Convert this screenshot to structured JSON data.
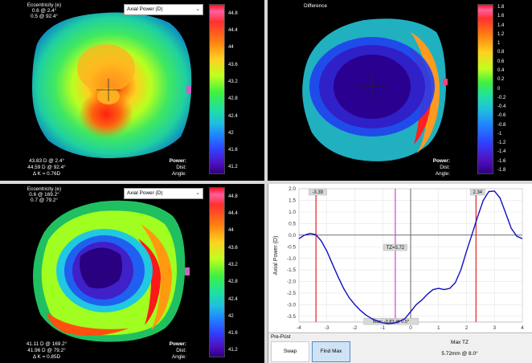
{
  "top_left": {
    "ecc_title": "Eccentricity (e)",
    "ecc_line1": "0.6 @ 2.4°",
    "ecc_line2": "0.5 @ 92.4°",
    "dropdown_value": "Axial Power (D)",
    "stats_line1": "43.83 D @ 2.4°",
    "stats_line2": "44.59 D @ 92.4°",
    "stats_line3": "Δ K = 0.76D",
    "power_label": "Power:",
    "dist_label": "Dist:",
    "angle_label": "Angle:",
    "scale_labels": [
      "44.8",
      "44.4",
      "44",
      "43.6",
      "43.2",
      "42.8",
      "42.4",
      "42",
      "41.6",
      "41.2"
    ]
  },
  "top_right": {
    "title": "Difference",
    "power_label": "Power:",
    "dist_label": "Dist:",
    "angle_label": "Angle:",
    "scale_labels": [
      "1.8",
      "1.6",
      "1.4",
      "1.2",
      "1",
      "0.8",
      "0.6",
      "0.4",
      "0.2",
      "0",
      "-0.2",
      "-0.4",
      "-0.6",
      "-0.8",
      "-1",
      "-1.2",
      "-1.4",
      "-1.6",
      "-1.8"
    ]
  },
  "bottom_left": {
    "ecc_title": "Eccentricity (e)",
    "ecc_line1": "0.6 @ 169.2°",
    "ecc_line2": "0.7 @ 79.2°",
    "dropdown_value": "Axial Power (D)",
    "stats_line1": "41.11 D @ 169.2°",
    "stats_line2": "41.96 D @ 79.2°",
    "stats_line3": "Δ K = 0.85D",
    "power_label": "Power:",
    "dist_label": "Dist:",
    "angle_label": "Angle:",
    "scale_labels": [
      "44.8",
      "44.4",
      "44",
      "43.6",
      "43.2",
      "42.8",
      "42.4",
      "42",
      "41.6",
      "41.2"
    ]
  },
  "chart_data": {
    "type": "line",
    "ylabel": "Axial Power (D)",
    "xlim": [
      -4,
      4
    ],
    "ylim": [
      -3.75,
      2.0
    ],
    "xticks": [
      "-4",
      "-3",
      "-2",
      "-1",
      "0",
      "1",
      "2",
      "3",
      "4"
    ],
    "yticks": [
      "2.0",
      "1.5",
      "1.0",
      "0.5",
      "0.0",
      "-0.5",
      "-1.0",
      "-1.5",
      "-2.0",
      "-2.5",
      "-3.0",
      "-3.5"
    ],
    "series": [
      {
        "x": [
          -4.0,
          -3.8,
          -3.6,
          -3.4,
          -3.2,
          -3.0,
          -2.8,
          -2.6,
          -2.4,
          -2.2,
          -2.0,
          -1.8,
          -1.6,
          -1.4,
          -1.2,
          -1.0,
          -0.8,
          -0.6,
          -0.4,
          -0.2,
          0.0,
          0.2,
          0.4,
          0.6,
          0.8,
          1.0,
          1.2,
          1.4,
          1.6,
          1.8,
          2.0,
          2.2,
          2.4,
          2.6,
          2.8,
          3.0,
          3.2,
          3.4,
          3.6,
          3.8,
          4.0
        ],
        "y": [
          -0.15,
          0.0,
          0.07,
          0.02,
          -0.25,
          -0.7,
          -1.25,
          -1.8,
          -2.3,
          -2.7,
          -3.0,
          -3.25,
          -3.45,
          -3.6,
          -3.7,
          -3.78,
          -3.82,
          -3.8,
          -3.72,
          -3.6,
          -3.3,
          -3.0,
          -2.8,
          -2.55,
          -2.35,
          -2.3,
          -2.35,
          -2.3,
          -2.05,
          -1.5,
          -0.7,
          0.05,
          0.8,
          1.5,
          1.88,
          1.9,
          1.6,
          0.95,
          0.3,
          -0.05,
          -0.15
        ]
      }
    ],
    "markers": [
      {
        "label": "-3.39",
        "x": -3.39,
        "color": "#e02020"
      },
      {
        "label": "2.34",
        "x": 2.34,
        "color": "#e02020"
      },
      {
        "label": "TZ=5.72",
        "x": -0.55,
        "color": "#d040d0"
      }
    ],
    "max_label": "Max: -3.83 @ 0.5°"
  },
  "bottom_right": {
    "pre_post": "Pre-Post",
    "swap_label": "Swap",
    "find_max_label": "Find Max",
    "max_tz_title": "Max TZ",
    "max_tz_value": "5.72mm @ 8.0°"
  },
  "colors": {
    "panel_bg": "#000000",
    "curve": "#1010c0",
    "red_marker": "#e02020",
    "tz_marker": "#d040d0",
    "button_active_bg": "#cfe3f5"
  }
}
